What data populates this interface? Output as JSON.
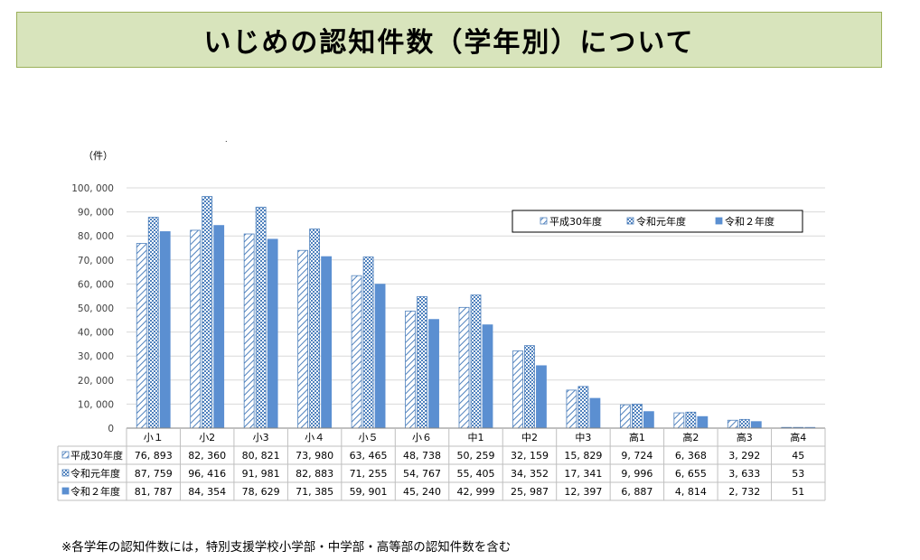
{
  "title": "いじめの認知件数（学年別）について",
  "footnote": "※各学年の認知件数には，特別支援学校小学部・中学部・高等部の認知件数を含む",
  "chart_data": {
    "type": "bar",
    "unit_label": "（件）",
    "categories": [
      "小１",
      "小2",
      "小3",
      "小４",
      "小５",
      "小６",
      "中1",
      "中2",
      "中3",
      "高1",
      "高2",
      "高3",
      "高4"
    ],
    "y_ticks": [
      "0",
      "10, 000",
      "20, 000",
      "30, 000",
      "40, 000",
      "50, 000",
      "60, 000",
      "70, 000",
      "80, 000",
      "90, 000",
      "100, 000"
    ],
    "ylim": [
      0,
      100000
    ],
    "grid": true,
    "legend_position": "top-right",
    "series": [
      {
        "name": "平成30年度",
        "pattern": "diagonal-hatch",
        "color": "#4f81bd",
        "values": [
          76893,
          82360,
          80821,
          73980,
          63465,
          48738,
          50259,
          32159,
          15829,
          9724,
          6368,
          3292,
          45
        ],
        "labels": [
          "76, 893",
          "82, 360",
          "80, 821",
          "73, 980",
          "63, 465",
          "48, 738",
          "50, 259",
          "32, 159",
          "15, 829",
          "9, 724",
          "6, 368",
          "3, 292",
          "45"
        ]
      },
      {
        "name": "令和元年度",
        "pattern": "checker",
        "color": "#4f81bd",
        "values": [
          87759,
          96416,
          91981,
          82883,
          71255,
          54767,
          55405,
          34352,
          17341,
          9996,
          6655,
          3633,
          53
        ],
        "labels": [
          "87, 759",
          "96, 416",
          "91, 981",
          "82, 883",
          "71, 255",
          "54, 767",
          "55, 405",
          "34, 352",
          "17, 341",
          "9, 996",
          "6, 655",
          "3, 633",
          "53"
        ]
      },
      {
        "name": "令和２年度",
        "pattern": "solid",
        "color": "#5b8fd1",
        "values": [
          81787,
          84354,
          78629,
          71385,
          59901,
          45240,
          42999,
          25987,
          12397,
          6887,
          4814,
          2732,
          51
        ],
        "labels": [
          "81, 787",
          "84, 354",
          "78, 629",
          "71, 385",
          "59, 901",
          "45, 240",
          "42, 999",
          "25, 987",
          "12, 397",
          "6, 887",
          "4, 814",
          "2, 732",
          "51"
        ]
      }
    ]
  }
}
